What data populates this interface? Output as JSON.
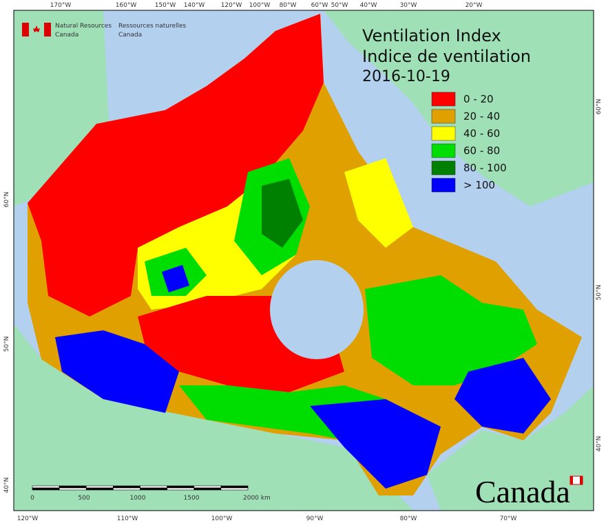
{
  "agency": {
    "en": [
      "Natural Resources",
      "Canada"
    ],
    "fr": [
      "Ressources naturelles",
      "Canada"
    ]
  },
  "title": [
    "Ventilation Index",
    "Indice de ventilation"
  ],
  "date": "2016-10-19",
  "legend": [
    {
      "label": "0 - 20",
      "color": "#ff0000"
    },
    {
      "label": "20 - 40",
      "color": "#e0a000"
    },
    {
      "label": "40 - 60",
      "color": "#ffff00"
    },
    {
      "label": "60 - 80",
      "color": "#00dd00"
    },
    {
      "label": "80 - 100",
      "color": "#008000"
    },
    {
      "label": "> 100",
      "color": "#0000ff"
    }
  ],
  "graticule": {
    "top": [
      "170°W",
      "160°W",
      "150°W",
      "140°W",
      "120°W",
      "100°W",
      "80°W",
      "60°W",
      "50°W",
      "40°W",
      "30°W",
      "20°W"
    ],
    "bottom": [
      "120°W",
      "110°W",
      "100°W",
      "90°W",
      "80°W",
      "70°W"
    ],
    "left": [
      "60°N",
      "50°N",
      "40°N"
    ],
    "right": [
      "60°N",
      "50°N",
      "40°N"
    ]
  },
  "scale_bar": [
    "0",
    "500",
    "1000",
    "1500",
    "2000 km"
  ],
  "wordmark": "Canada"
}
